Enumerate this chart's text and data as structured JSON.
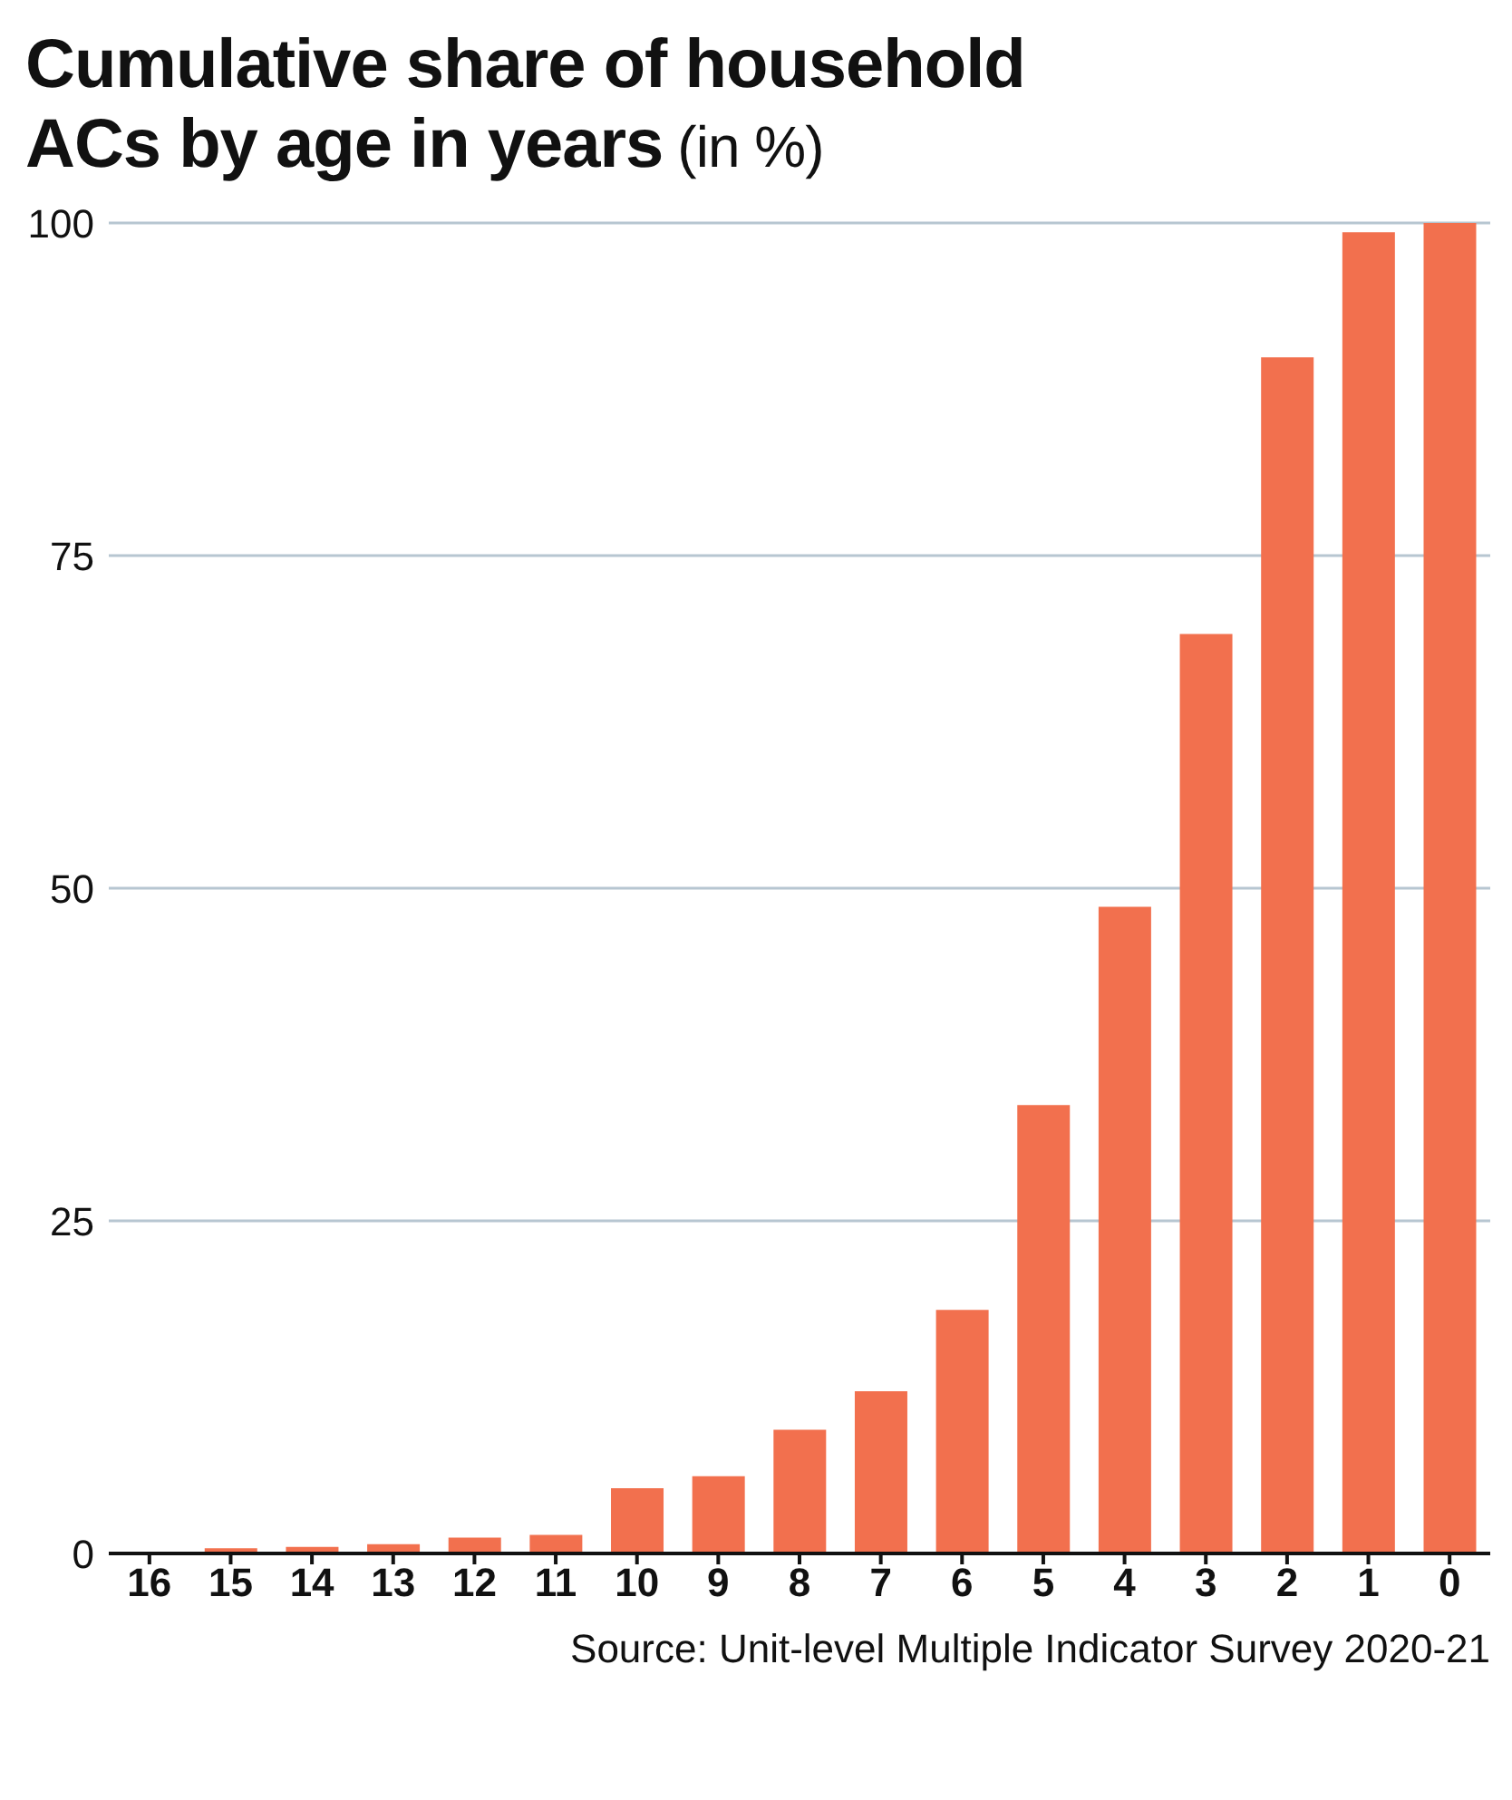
{
  "chart_data": {
    "type": "bar",
    "title": "Cumulative share of household ACs by age in years",
    "subtitle": "(in %)",
    "annotations": [
      "Source: Unit-level Multiple Indicator Survey 2020-21"
    ],
    "categories": [
      "16",
      "15",
      "14",
      "13",
      "12",
      "11",
      "10",
      "9",
      "8",
      "7",
      "6",
      "5",
      "4",
      "3",
      "2",
      "1",
      "0"
    ],
    "values": [
      0,
      0.4,
      0.5,
      0.7,
      1.2,
      1.4,
      4.9,
      5.8,
      9.3,
      12.2,
      18.3,
      33.7,
      48.6,
      69.1,
      89.9,
      99.3,
      100
    ],
    "color": "#f2704e",
    "ylim": [
      0,
      100
    ],
    "yticks": [
      0,
      25,
      50,
      75,
      100
    ],
    "grid": "y"
  }
}
